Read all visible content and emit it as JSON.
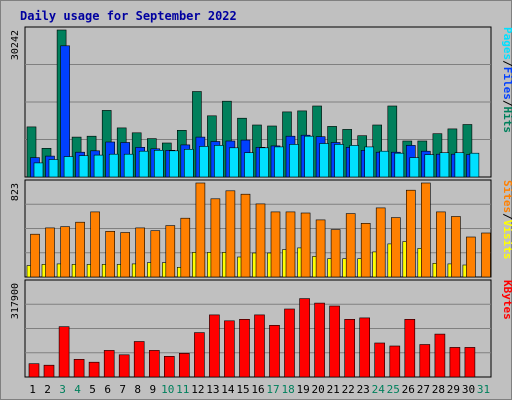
{
  "title": "Daily usage for September 2022",
  "colors": {
    "hits": "#00805c",
    "files": "#0040ff",
    "pages": "#00e0ff",
    "visits": "#ffff00",
    "sites": "#ff8000",
    "kbytes": "#ff0000",
    "weekday": "#000000",
    "weekend": "#00805c"
  },
  "chart_data": [
    {
      "type": "bar",
      "panel": "top",
      "ymax_label": "30242",
      "ylim": [
        0,
        30242
      ],
      "side_labels": [
        {
          "text": "Hits",
          "color": "#00805c"
        },
        {
          "text": "/",
          "color": "#000000"
        },
        {
          "text": "Files",
          "color": "#0040ff"
        },
        {
          "text": "/",
          "color": "#000000"
        },
        {
          "text": "Pages",
          "color": "#00e0ff"
        }
      ],
      "categories": [
        "1",
        "2",
        "3",
        "4",
        "5",
        "6",
        "7",
        "8",
        "9",
        "10",
        "11",
        "12",
        "13",
        "14",
        "15",
        "16",
        "17",
        "18",
        "19",
        "20",
        "21",
        "22",
        "23",
        "24",
        "25",
        "26",
        "27",
        "28",
        "29",
        "30",
        "31"
      ],
      "weekend_days": [
        3,
        4,
        10,
        11,
        17,
        18,
        24,
        25,
        31
      ],
      "series": [
        {
          "name": "Hits",
          "color": "#00805c",
          "values": [
            10300,
            5900,
            30242,
            8200,
            8400,
            13700,
            10100,
            9100,
            7900,
            7000,
            9600,
            17600,
            12600,
            15600,
            12100,
            10700,
            10500,
            13400,
            13600,
            14600,
            10400,
            9800,
            8500,
            10700,
            14600,
            7400,
            7400,
            8900,
            9900,
            10800,
            0
          ]
        },
        {
          "name": "Files",
          "color": "#0040ff",
          "values": [
            4000,
            4300,
            27000,
            5100,
            5400,
            7200,
            7100,
            6100,
            5800,
            5500,
            6600,
            8200,
            7300,
            7400,
            7600,
            6100,
            6400,
            8400,
            8600,
            8300,
            7100,
            6100,
            5500,
            5100,
            5100,
            6500,
            5300,
            4700,
            4700,
            4600,
            0
          ]
        },
        {
          "name": "Pages",
          "color": "#00e0ff",
          "values": [
            2900,
            3600,
            4200,
            4400,
            4500,
            4700,
            4700,
            5300,
            5500,
            5400,
            5700,
            6300,
            6500,
            6000,
            5000,
            6000,
            6200,
            6700,
            8400,
            6900,
            6700,
            6500,
            6200,
            5300,
            4900,
            4000,
            4600,
            5000,
            5000,
            4900,
            0
          ]
        }
      ]
    },
    {
      "type": "bar",
      "panel": "middle",
      "ymax_label": "823",
      "ylim": [
        0,
        823
      ],
      "side_labels": [
        {
          "text": "Visits",
          "color": "#ffff00"
        },
        {
          "text": "/",
          "color": "#000000"
        },
        {
          "text": "Sites",
          "color": "#ff8000"
        }
      ],
      "categories": [
        "1",
        "2",
        "3",
        "4",
        "5",
        "6",
        "7",
        "8",
        "9",
        "10",
        "11",
        "12",
        "13",
        "14",
        "15",
        "16",
        "17",
        "18",
        "19",
        "20",
        "21",
        "22",
        "23",
        "24",
        "25",
        "26",
        "27",
        "28",
        "29",
        "30",
        "31"
      ],
      "series": [
        {
          "name": "Visits",
          "color": "#ffff00",
          "values": [
            100,
            110,
            115,
            110,
            110,
            110,
            110,
            115,
            125,
            125,
            85,
            215,
            215,
            215,
            175,
            210,
            210,
            240,
            255,
            180,
            160,
            160,
            160,
            220,
            290,
            310,
            250,
            120,
            115,
            105,
            0
          ]
        },
        {
          "name": "Sites",
          "color": "#ff8000",
          "values": [
            375,
            430,
            440,
            480,
            570,
            400,
            390,
            430,
            405,
            450,
            515,
            823,
            685,
            755,
            725,
            640,
            570,
            570,
            560,
            500,
            415,
            555,
            470,
            605,
            520,
            760,
            823,
            570,
            530,
            350,
            385
          ]
        }
      ]
    },
    {
      "type": "bar",
      "panel": "bottom",
      "ymax_label": "317900",
      "ylim": [
        0,
        317900
      ],
      "side_labels": [
        {
          "text": "KBytes",
          "color": "#ff0000"
        }
      ],
      "categories": [
        "1",
        "2",
        "3",
        "4",
        "5",
        "6",
        "7",
        "8",
        "9",
        "10",
        "11",
        "12",
        "13",
        "14",
        "15",
        "16",
        "17",
        "18",
        "19",
        "20",
        "21",
        "22",
        "23",
        "24",
        "25",
        "26",
        "27",
        "28",
        "29",
        "30",
        "31"
      ],
      "series": [
        {
          "name": "KBytes",
          "color": "#ff0000",
          "values": [
            45000,
            40000,
            170000,
            60000,
            50000,
            90000,
            75000,
            120000,
            90000,
            70000,
            80000,
            150000,
            210000,
            190000,
            195000,
            210000,
            175000,
            230000,
            265000,
            250000,
            240000,
            195000,
            200000,
            115000,
            105000,
            195000,
            110000,
            145000,
            100000,
            100000,
            0
          ]
        }
      ]
    }
  ]
}
